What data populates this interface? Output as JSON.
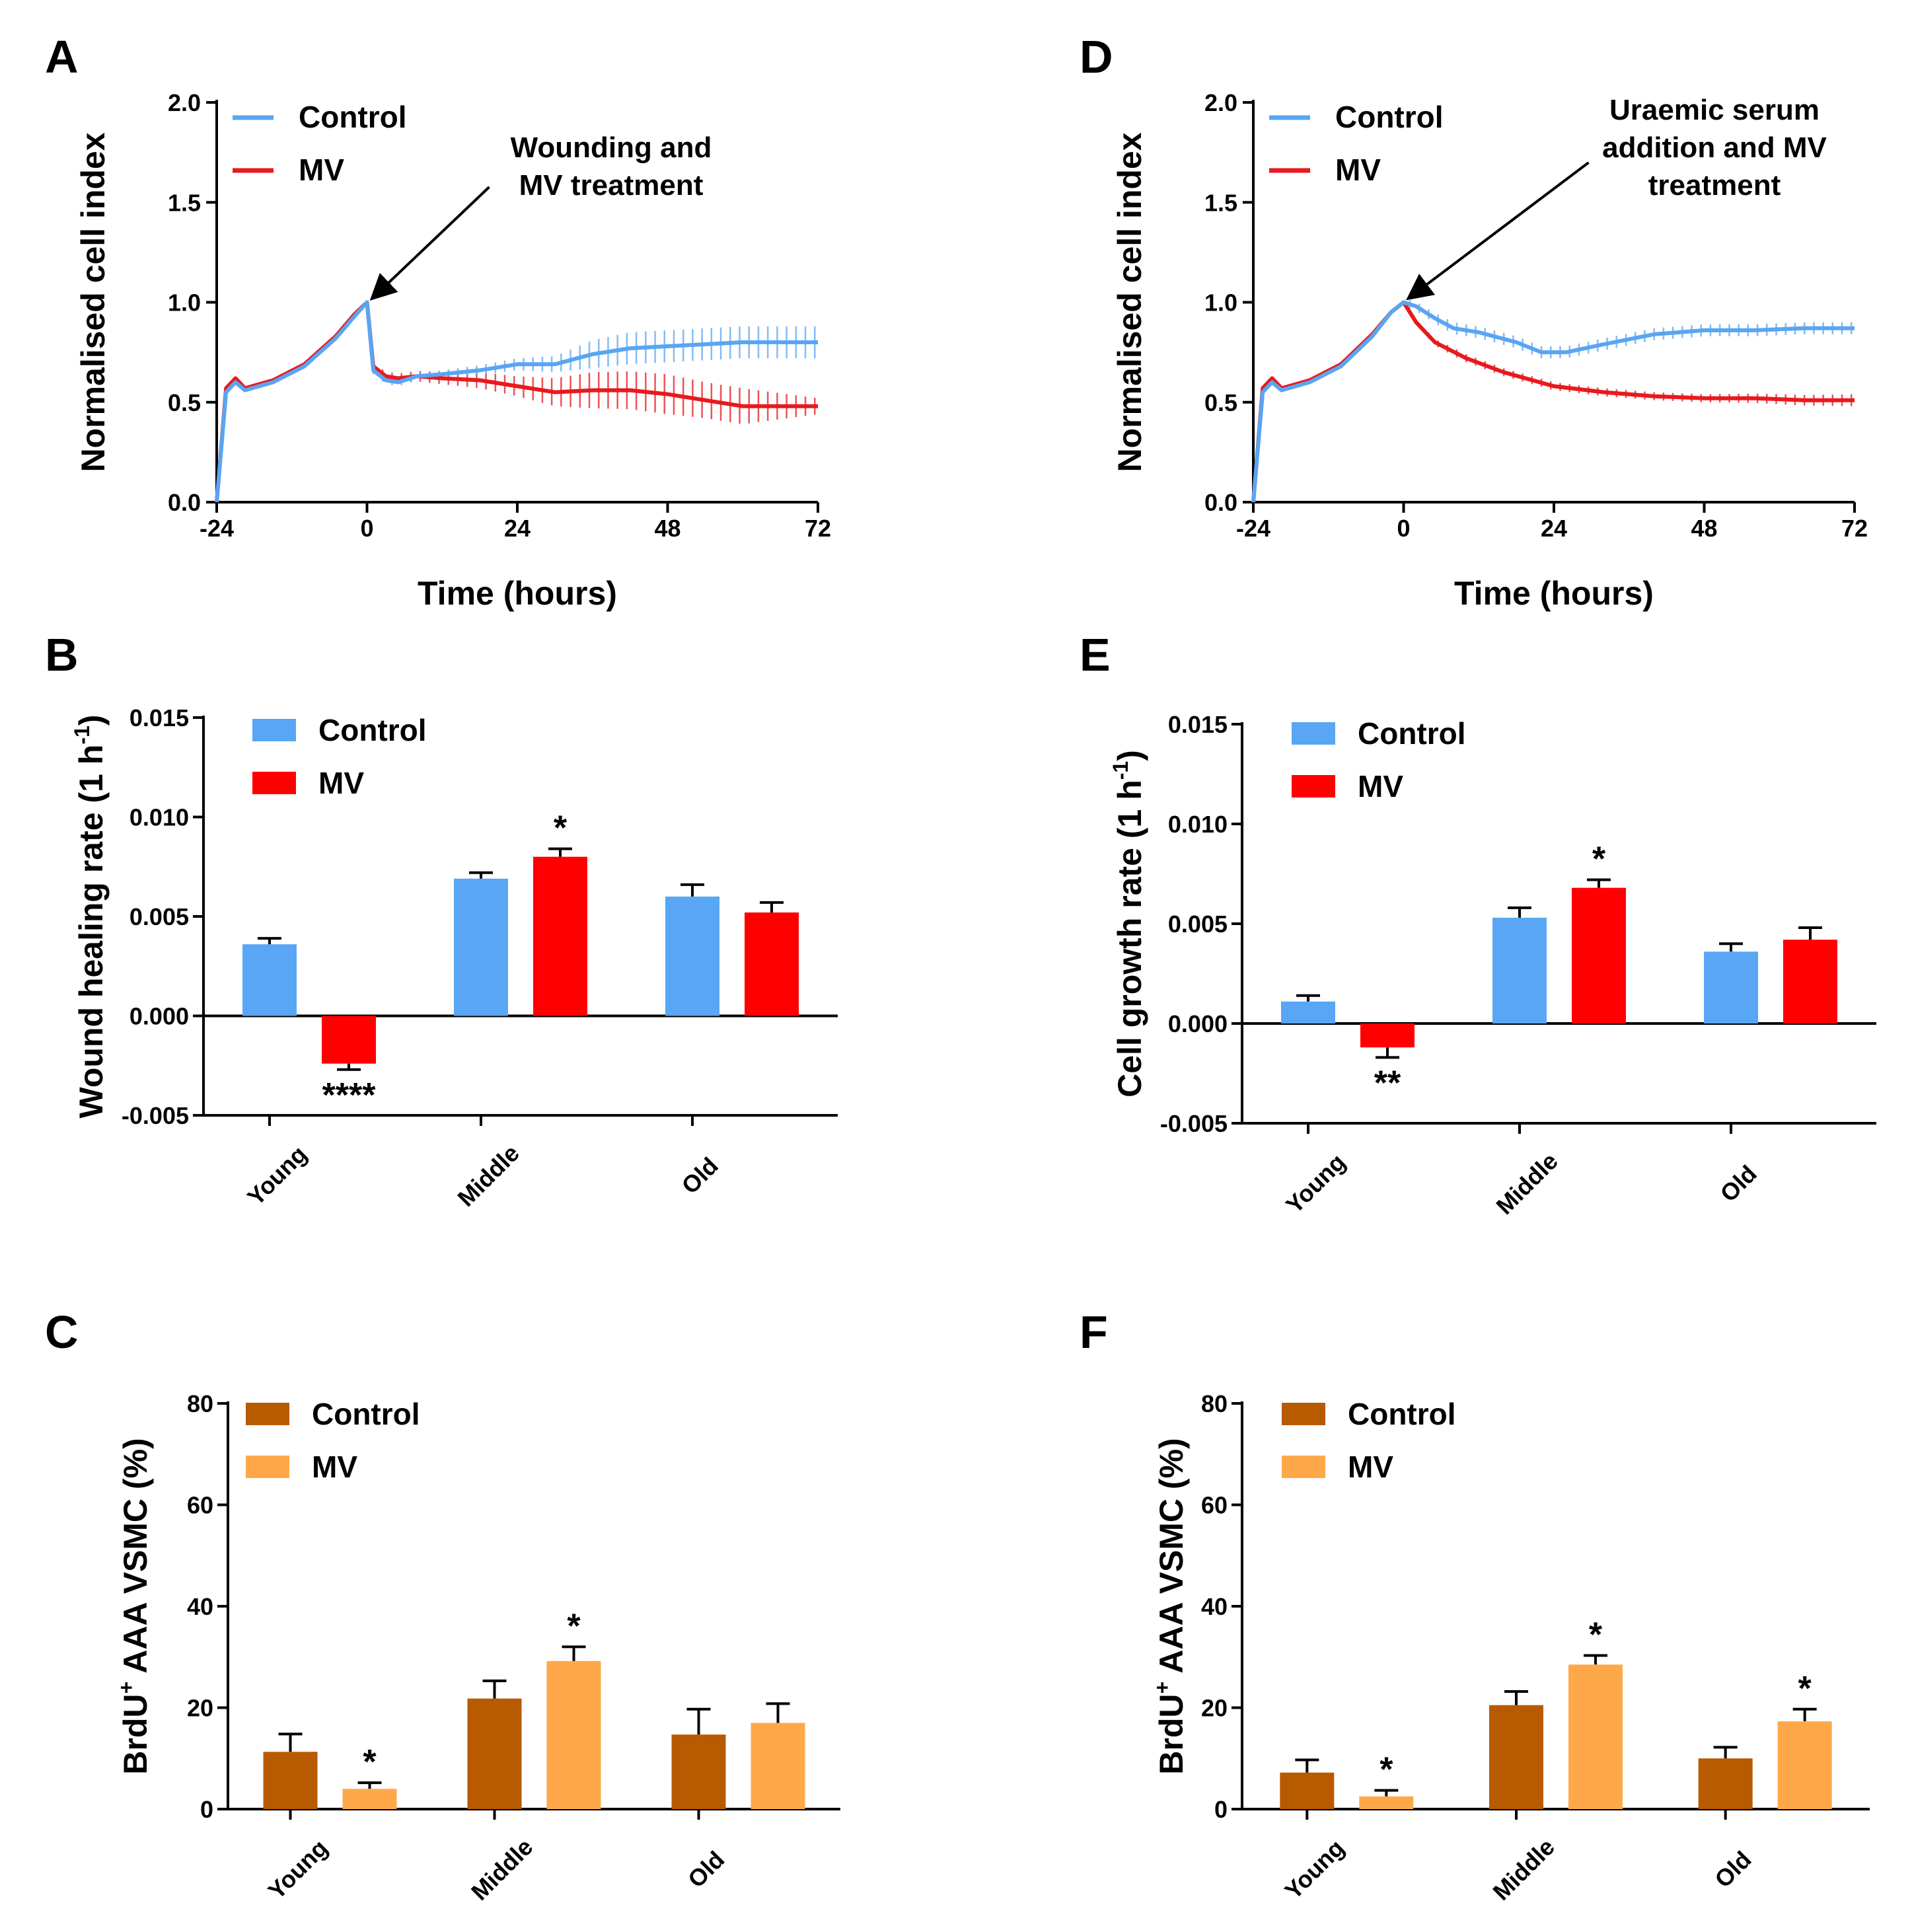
{
  "colors": {
    "control_line": "#5aa5f2",
    "mv_line": "#e8191e",
    "control_bar_blue": "#58a6f4",
    "mv_bar_red": "#ff0000",
    "control_bar_brown": "#b85a00",
    "mv_bar_orange": "#ffa84a",
    "axis": "#000000"
  },
  "chart_data": [
    {
      "id": "A",
      "type": "line",
      "letter": "A",
      "xlabel": "Time (hours)",
      "ylabel": "Normalised cell index",
      "xlim": [
        -24,
        72
      ],
      "ylim": [
        0,
        2.0
      ],
      "xticks": [
        "-24",
        "0",
        "24",
        "48",
        "72"
      ],
      "yticks": [
        "0.0",
        "0.5",
        "1.0",
        "1.5",
        "2.0"
      ],
      "legend": [
        "Control",
        "MV"
      ],
      "annotation": [
        "Wounding and",
        "MV treatment"
      ],
      "arrow_target": [
        0,
        1.0
      ],
      "series": [
        {
          "name": "Control",
          "points": [
            [
              -24,
              0
            ],
            [
              -22.5,
              0.55
            ],
            [
              -21,
              0.6
            ],
            [
              -19.5,
              0.56
            ],
            [
              -15,
              0.6
            ],
            [
              -10,
              0.68
            ],
            [
              -5,
              0.82
            ],
            [
              -2,
              0.93
            ],
            [
              0,
              1.0
            ],
            [
              1,
              0.66
            ],
            [
              3,
              0.61
            ],
            [
              5,
              0.6
            ],
            [
              8,
              0.63
            ],
            [
              12,
              0.64
            ],
            [
              18,
              0.66
            ],
            [
              24,
              0.69
            ],
            [
              30,
              0.69
            ],
            [
              36,
              0.74
            ],
            [
              42,
              0.77
            ],
            [
              48,
              0.78
            ],
            [
              54,
              0.79
            ],
            [
              60,
              0.8
            ],
            [
              66,
              0.8
            ],
            [
              72,
              0.8
            ]
          ],
          "err": [
            [
              0,
              0
            ],
            [
              1,
              0.02
            ],
            [
              12,
              0.02
            ],
            [
              24,
              0.03
            ],
            [
              30,
              0.04
            ],
            [
              36,
              0.07
            ],
            [
              42,
              0.08
            ],
            [
              48,
              0.08
            ],
            [
              60,
              0.08
            ],
            [
              72,
              0.08
            ]
          ]
        },
        {
          "name": "MV",
          "points": [
            [
              -24,
              0
            ],
            [
              -22.5,
              0.57
            ],
            [
              -21,
              0.62
            ],
            [
              -19.5,
              0.57
            ],
            [
              -15,
              0.61
            ],
            [
              -10,
              0.69
            ],
            [
              -5,
              0.83
            ],
            [
              -2,
              0.94
            ],
            [
              0,
              1.0
            ],
            [
              1,
              0.68
            ],
            [
              3,
              0.63
            ],
            [
              5,
              0.62
            ],
            [
              8,
              0.63
            ],
            [
              12,
              0.62
            ],
            [
              18,
              0.61
            ],
            [
              24,
              0.58
            ],
            [
              30,
              0.55
            ],
            [
              36,
              0.56
            ],
            [
              42,
              0.56
            ],
            [
              48,
              0.54
            ],
            [
              54,
              0.51
            ],
            [
              60,
              0.48
            ],
            [
              66,
              0.48
            ],
            [
              72,
              0.48
            ]
          ],
          "err": [
            [
              0,
              0
            ],
            [
              1,
              0.02
            ],
            [
              12,
              0.03
            ],
            [
              24,
              0.05
            ],
            [
              36,
              0.09
            ],
            [
              48,
              0.1
            ],
            [
              54,
              0.09
            ],
            [
              60,
              0.09
            ],
            [
              72,
              0.04
            ]
          ]
        }
      ]
    },
    {
      "id": "D",
      "type": "line",
      "letter": "D",
      "xlabel": "Time (hours)",
      "ylabel": "Normalised cell index",
      "xlim": [
        -24,
        72
      ],
      "ylim": [
        0,
        2.0
      ],
      "xticks": [
        "-24",
        "0",
        "24",
        "48",
        "72"
      ],
      "yticks": [
        "0.0",
        "0.5",
        "1.0",
        "1.5",
        "2.0"
      ],
      "legend": [
        "Control",
        "MV"
      ],
      "annotation": [
        "Uraemic serum",
        "addition and MV",
        "treatment"
      ],
      "arrow_target": [
        0,
        1.0
      ],
      "series": [
        {
          "name": "Control",
          "points": [
            [
              -24,
              0
            ],
            [
              -22.5,
              0.55
            ],
            [
              -21,
              0.6
            ],
            [
              -19.5,
              0.56
            ],
            [
              -15,
              0.6
            ],
            [
              -10,
              0.68
            ],
            [
              -5,
              0.83
            ],
            [
              -2,
              0.95
            ],
            [
              0,
              1.0
            ],
            [
              2,
              0.98
            ],
            [
              5,
              0.92
            ],
            [
              8,
              0.87
            ],
            [
              12,
              0.85
            ],
            [
              18,
              0.8
            ],
            [
              22,
              0.75
            ],
            [
              26,
              0.75
            ],
            [
              32,
              0.79
            ],
            [
              40,
              0.84
            ],
            [
              48,
              0.86
            ],
            [
              56,
              0.86
            ],
            [
              64,
              0.87
            ],
            [
              72,
              0.87
            ]
          ],
          "err": [
            [
              0,
              0.02
            ],
            [
              8,
              0.03
            ],
            [
              24,
              0.03
            ],
            [
              48,
              0.03
            ],
            [
              72,
              0.03
            ]
          ]
        },
        {
          "name": "MV",
          "points": [
            [
              -24,
              0
            ],
            [
              -22.5,
              0.57
            ],
            [
              -21,
              0.62
            ],
            [
              -19.5,
              0.57
            ],
            [
              -15,
              0.61
            ],
            [
              -10,
              0.69
            ],
            [
              -5,
              0.84
            ],
            [
              -2,
              0.95
            ],
            [
              0,
              1.0
            ],
            [
              2,
              0.9
            ],
            [
              5,
              0.8
            ],
            [
              10,
              0.72
            ],
            [
              16,
              0.65
            ],
            [
              24,
              0.58
            ],
            [
              32,
              0.55
            ],
            [
              40,
              0.53
            ],
            [
              48,
              0.52
            ],
            [
              56,
              0.52
            ],
            [
              64,
              0.51
            ],
            [
              72,
              0.51
            ]
          ],
          "err": [
            [
              0,
              0.01
            ],
            [
              8,
              0.02
            ],
            [
              24,
              0.02
            ],
            [
              48,
              0.02
            ],
            [
              72,
              0.03
            ]
          ]
        }
      ]
    },
    {
      "id": "B",
      "type": "bar",
      "letter": "B",
      "ylabel": "Wound healing rate (1 h",
      "ylabel_sup": "-1",
      "ylabel_close": ")",
      "categories": [
        "Young",
        "Middle",
        "Old"
      ],
      "ylim": [
        -0.005,
        0.015
      ],
      "yticks": [
        "-0.005",
        "0.000",
        "0.005",
        "0.010",
        "0.015"
      ],
      "legend": [
        "Control",
        "MV"
      ],
      "series": [
        {
          "name": "Control",
          "values": [
            0.0036,
            0.0069,
            0.006
          ],
          "err": [
            0.0003,
            0.0003,
            0.0006
          ]
        },
        {
          "name": "MV",
          "values": [
            -0.0024,
            0.008,
            0.0052
          ],
          "err": [
            0.0003,
            0.0004,
            0.0005
          ]
        }
      ],
      "stars": [
        {
          "cat": 0,
          "series": 1,
          "text": "****"
        },
        {
          "cat": 1,
          "series": 1,
          "text": "*"
        }
      ]
    },
    {
      "id": "E",
      "type": "bar",
      "letter": "E",
      "ylabel": "Cell growth rate (1 h",
      "ylabel_sup": "-1",
      "ylabel_close": ")",
      "categories": [
        "Young",
        "Middle",
        "Old"
      ],
      "ylim": [
        -0.005,
        0.015
      ],
      "yticks": [
        "-0.005",
        "0.000",
        "0.005",
        "0.010",
        "0.015"
      ],
      "legend": [
        "Control",
        "MV"
      ],
      "series": [
        {
          "name": "Control",
          "values": [
            0.0011,
            0.0053,
            0.0036
          ],
          "err": [
            0.0003,
            0.0005,
            0.0004
          ]
        },
        {
          "name": "MV",
          "values": [
            -0.0012,
            0.0068,
            0.0042
          ],
          "err": [
            0.0005,
            0.0004,
            0.0006
          ]
        }
      ],
      "stars": [
        {
          "cat": 0,
          "series": 1,
          "text": "**"
        },
        {
          "cat": 1,
          "series": 1,
          "text": "*"
        }
      ]
    },
    {
      "id": "C",
      "type": "bar",
      "letter": "C",
      "ylabel": "BrdU",
      "ylabel_sup": "+",
      "ylabel_close": " AAA VSMC  (%)",
      "categories": [
        "Young",
        "Middle",
        "Old"
      ],
      "ylim": [
        0,
        80
      ],
      "yticks": [
        "0",
        "20",
        "40",
        "60",
        "80"
      ],
      "legend": [
        "Control",
        "MV"
      ],
      "series": [
        {
          "name": "Control",
          "values": [
            11.3,
            21.8,
            14.7
          ],
          "err": [
            3.5,
            3.5,
            5.0
          ]
        },
        {
          "name": "MV",
          "values": [
            4.0,
            29.2,
            17.0
          ],
          "err": [
            1.2,
            2.8,
            3.8
          ]
        }
      ],
      "stars": [
        {
          "cat": 0,
          "series": 1,
          "text": "*"
        },
        {
          "cat": 1,
          "series": 1,
          "text": "*"
        }
      ]
    },
    {
      "id": "F",
      "type": "bar",
      "letter": "F",
      "ylabel": "BrdU",
      "ylabel_sup": "+",
      "ylabel_close": " AAA VSMC  (%)",
      "categories": [
        "Young",
        "Middle",
        "Old"
      ],
      "ylim": [
        0,
        80
      ],
      "yticks": [
        "0",
        "20",
        "40",
        "60",
        "80"
      ],
      "legend": [
        "Control",
        "MV"
      ],
      "series": [
        {
          "name": "Control",
          "values": [
            7.2,
            20.5,
            10.0
          ],
          "err": [
            2.5,
            2.7,
            2.2
          ]
        },
        {
          "name": "MV",
          "values": [
            2.5,
            28.5,
            17.3
          ],
          "err": [
            1.2,
            1.8,
            2.4
          ]
        }
      ],
      "stars": [
        {
          "cat": 0,
          "series": 1,
          "text": "*"
        },
        {
          "cat": 1,
          "series": 1,
          "text": "*"
        },
        {
          "cat": 2,
          "series": 1,
          "text": "*"
        }
      ]
    }
  ]
}
